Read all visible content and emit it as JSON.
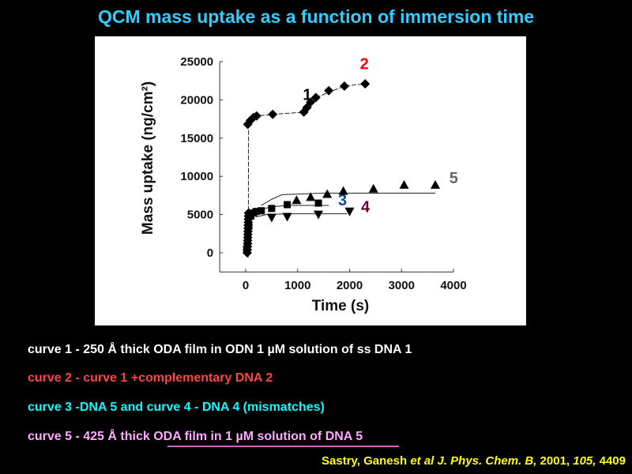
{
  "title": "QCM mass uptake as a function of immersion time",
  "chart_data": {
    "type": "scatter",
    "xlabel": "Time (s)",
    "ylabel": "Mass uptake (ng/cm²)",
    "xlim": [
      -500,
      4000
    ],
    "ylim": [
      -2500,
      25000
    ],
    "xticks": [
      0,
      1000,
      2000,
      3000,
      4000
    ],
    "yticks": [
      0,
      5000,
      10000,
      15000,
      20000,
      25000
    ],
    "grid": false,
    "series": [
      {
        "name": "1",
        "marker": "diamond",
        "label_color": "#000000",
        "x": [
          40,
          90,
          150,
          210,
          520,
          1120,
          1180,
          1250,
          1350,
          1600,
          1900,
          2300
        ],
        "y": [
          16800,
          17300,
          17700,
          17900,
          18100,
          18400,
          19000,
          19700,
          20300,
          21200,
          21800,
          22100
        ],
        "fit": [
          [
            0,
            0
          ],
          [
            50,
            -500
          ],
          [
            55,
            16800
          ],
          [
            210,
            17900
          ],
          [
            520,
            18100
          ],
          [
            1120,
            18400
          ],
          [
            1350,
            20300
          ],
          [
            1900,
            21800
          ],
          [
            2300,
            22100
          ]
        ]
      },
      {
        "name": "2",
        "marker": "diamond",
        "label_color": "#ff0000",
        "x": [],
        "y": []
      },
      {
        "name": "3",
        "marker": "square",
        "label_color": "#1144aa",
        "x": [
          20,
          60,
          100,
          150,
          200,
          300,
          500,
          800,
          1400
        ],
        "y": [
          500,
          3500,
          4800,
          5200,
          5400,
          5500,
          5800,
          6300,
          6500
        ],
        "fit": [
          [
            300,
            5700
          ],
          [
            500,
            6000
          ],
          [
            800,
            6200
          ],
          [
            1600,
            6200
          ]
        ]
      },
      {
        "name": "4",
        "marker": "triangle-down",
        "label_color": "#660033",
        "x": [
          500,
          800,
          1400,
          2000
        ],
        "y": [
          4600,
          4700,
          5000,
          5400
        ],
        "fit": [
          [
            200,
            4700
          ],
          [
            400,
            5000
          ],
          [
            800,
            5100
          ],
          [
            1950,
            5100
          ]
        ]
      },
      {
        "name": "5",
        "marker": "triangle-up",
        "label_color": "#666666",
        "x": [
          980,
          1250,
          1570,
          1880,
          2460,
          3050,
          3650
        ],
        "y": [
          6900,
          7300,
          7700,
          8100,
          8400,
          8900,
          8900
        ],
        "fit": [
          [
            300,
            6200
          ],
          [
            500,
            7000
          ],
          [
            700,
            7600
          ],
          [
            1500,
            7800
          ],
          [
            3650,
            7800
          ]
        ]
      }
    ]
  },
  "captions": [
    {
      "text": "curve 1 -  250 Å thick ODA film in ODN 1 µM solution  of ss DNA 1",
      "color": "#ffffff"
    },
    {
      "text": "curve 2 -  curve 1 +complementary DNA 2",
      "color": "#ff4444"
    },
    {
      "text": "curve 3 -DNA 5 and curve 4 - DNA 4  (mismatches)",
      "color": "#00ffff"
    },
    {
      "text": "curve 5 -  425 Å thick ODA film in 1 µM solution of DNA 5",
      "color": "#ffaaff"
    }
  ],
  "reference": {
    "authors": "Sastry, Ganesh ",
    "etal": "et al J. Phys. Chem. B,",
    "year": " 2001, ",
    "volume": "105,",
    "pages": " 4409"
  }
}
